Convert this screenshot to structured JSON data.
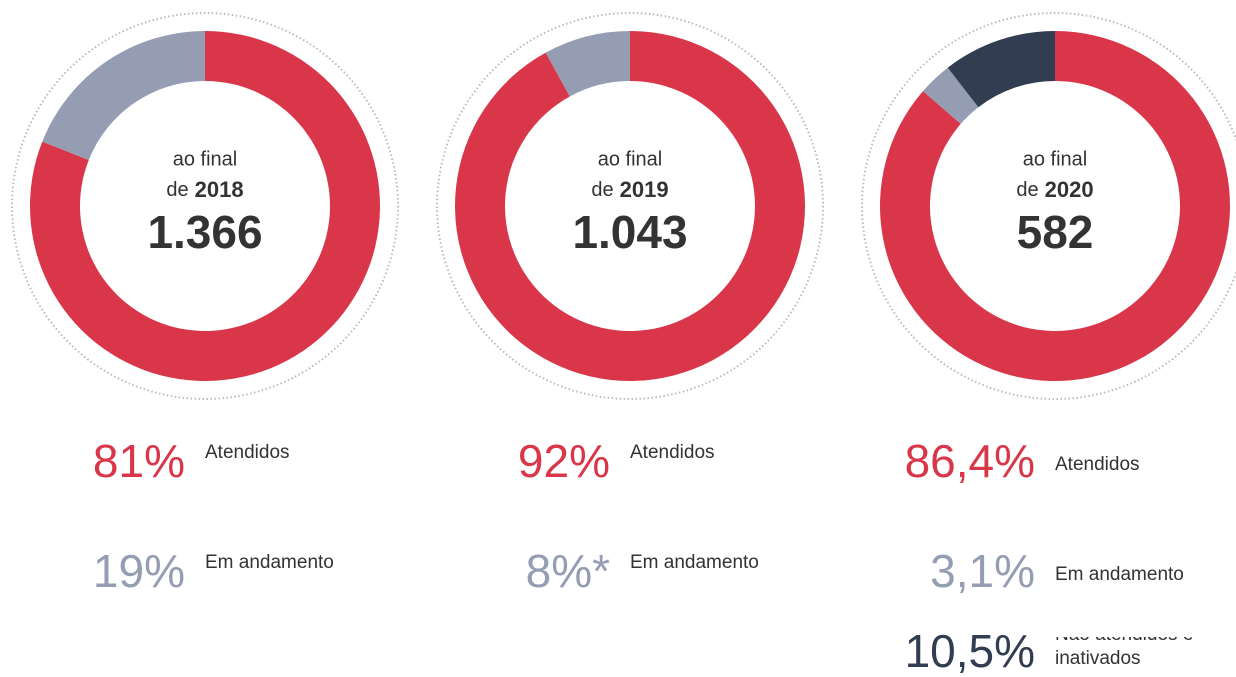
{
  "chart_data": [
    {
      "type": "pie",
      "donut": true,
      "subtitle": "ao final",
      "year_prefix": "de",
      "year": "2018",
      "total": "1.366",
      "series": [
        {
          "name": "Atendidos",
          "color": "#d9364a",
          "values": [
            81
          ],
          "value_labels": [
            "81%"
          ]
        },
        {
          "name": "Em andamento",
          "color": "#959db3",
          "values": [
            19
          ],
          "value_labels": [
            "19%"
          ]
        }
      ]
    },
    {
      "type": "pie",
      "donut": true,
      "subtitle": "ao final",
      "year_prefix": "de",
      "year": "2019",
      "total": "1.043",
      "series": [
        {
          "name": "Atendidos",
          "color": "#d9364a",
          "values": [
            92
          ],
          "value_labels": [
            "92%"
          ]
        },
        {
          "name": "Em andamento",
          "color": "#959db3",
          "values": [
            8
          ],
          "value_labels": [
            "8%*"
          ]
        }
      ]
    },
    {
      "type": "pie",
      "donut": true,
      "subtitle": "ao final",
      "year_prefix": "de",
      "year": "2020",
      "total": "582",
      "series": [
        {
          "name": "Atendidos",
          "color": "#d9364a",
          "values": [
            86.4
          ],
          "value_labels": [
            "86,4%"
          ]
        },
        {
          "name": "Em andamento",
          "color": "#959db3",
          "values": [
            3.1
          ],
          "value_labels": [
            "3,1%"
          ]
        },
        {
          "name": "Não atendidos e inativados",
          "color": "#323d52",
          "values": [
            10.5
          ],
          "value_labels": [
            "10,5%"
          ]
        }
      ]
    }
  ]
}
